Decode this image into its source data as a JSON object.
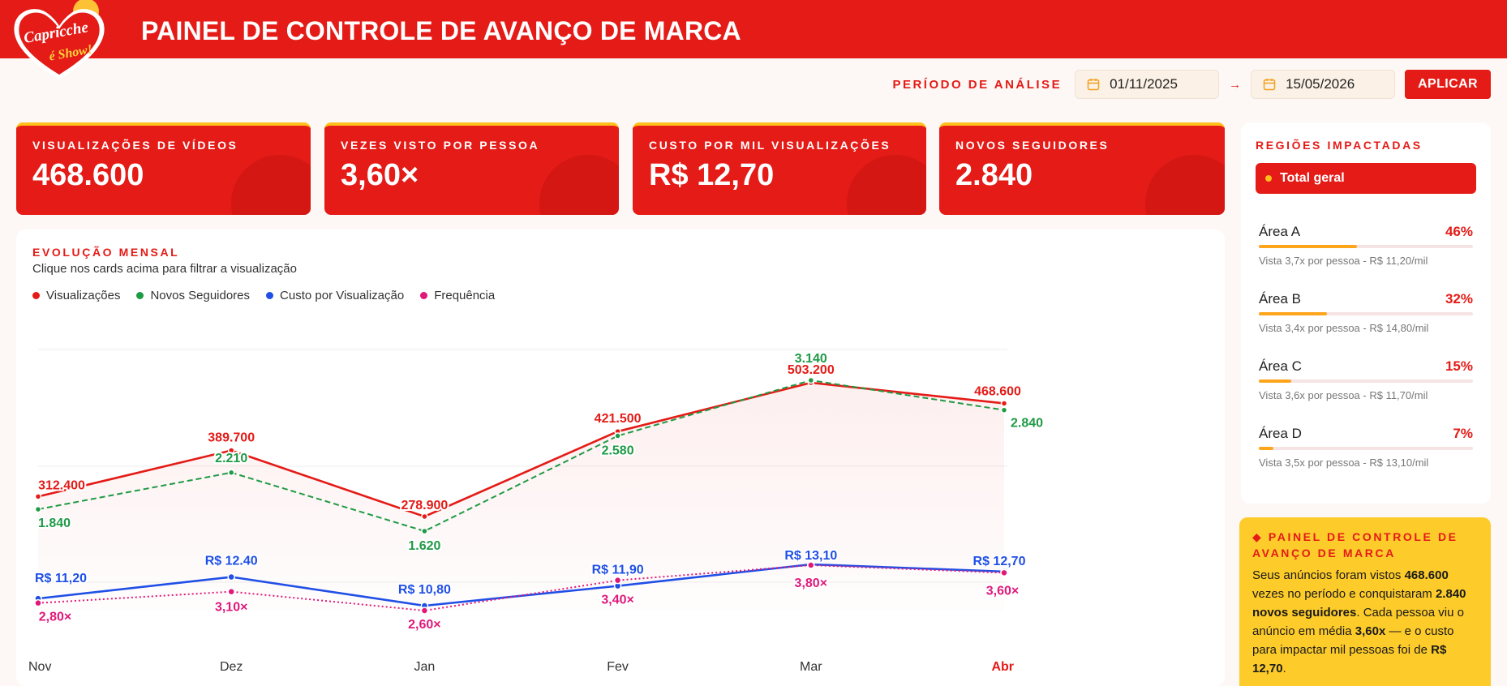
{
  "header": {
    "title": "PAINEL DE CONTROLE DE AVANÇO DE MARCA",
    "logo_line1": "Capricche",
    "logo_line2": "é Show!"
  },
  "filter": {
    "label": "PERÍODO DE ANÁLISE",
    "start_date": "01/11/2025",
    "end_date": "15/05/2026",
    "arrow": "→",
    "apply_label": "APLICAR"
  },
  "kpis": [
    {
      "label": "VISUALIZAÇÕES DE VÍDEOS",
      "value": "468.600"
    },
    {
      "label": "VEZES VISTO POR PESSOA",
      "value": "3,60×"
    },
    {
      "label": "CUSTO POR MIL VISUALIZAÇÕES",
      "value": "R$ 12,70"
    },
    {
      "label": "NOVOS SEGUIDORES",
      "value": "2.840"
    }
  ],
  "colors": {
    "brand_red": "#e41b17",
    "accent_yellow": "#ffc01c",
    "green": "#1f9a45",
    "blue": "#1f4fe6",
    "pink": "#e0187a",
    "bar_orange": "#ffa51c"
  },
  "chart": {
    "title": "EVOLUÇÃO MENSAL",
    "subtitle": "Clique nos cards acima para filtrar a visualização"
  },
  "chart_data": {
    "type": "line",
    "categories": [
      "Nov",
      "Dez",
      "Jan",
      "Fev",
      "Mar",
      "Abr"
    ],
    "highlight_category": "Abr",
    "legend_position": "top-left",
    "grid": true,
    "series": [
      {
        "name": "Visualizações",
        "color": "#e41b17",
        "style": "solid",
        "values": [
          312400,
          389700,
          278900,
          421500,
          503200,
          468600
        ],
        "labels": [
          "312.400",
          "389.700",
          "278.900",
          "421.500",
          "503.200",
          "468.600"
        ]
      },
      {
        "name": "Novos Seguidores",
        "color": "#1f9a45",
        "style": "dashed",
        "values": [
          1840,
          2210,
          1620,
          2580,
          3140,
          2840
        ],
        "labels": [
          "1.840",
          "2.210",
          "1.620",
          "2.580",
          "3.140",
          "2.840"
        ]
      },
      {
        "name": "Custo por Visualização",
        "color": "#1f4fe6",
        "style": "solid",
        "values": [
          11.2,
          12.4,
          10.8,
          11.9,
          13.1,
          12.7
        ],
        "labels": [
          "R$ 11,20",
          "R$ 12.40",
          "R$ 10,80",
          "R$ 11,90",
          "R$ 13,10",
          "R$ 12,70"
        ]
      },
      {
        "name": "Frequência",
        "color": "#e0187a",
        "style": "dotted",
        "values": [
          2.8,
          3.1,
          2.6,
          3.4,
          3.8,
          3.6
        ],
        "labels": [
          "2,80×",
          "3,10×",
          "2,60×",
          "3,40×",
          "3,80×",
          "3,60×"
        ]
      }
    ]
  },
  "regions": {
    "title": "REGIÕES IMPACTADAS",
    "total_label": "Total geral",
    "items": [
      {
        "name": "Área A",
        "pct_label": "46%",
        "pct": 0.46,
        "note": "Vista 3,7x por pessoa - R$ 11,20/mil"
      },
      {
        "name": "Área B",
        "pct_label": "32%",
        "pct": 0.32,
        "note": "Vista 3,4x por pessoa - R$ 14,80/mil"
      },
      {
        "name": "Área C",
        "pct_label": "15%",
        "pct": 0.15,
        "note": "Vista 3,6x por pessoa - R$ 11,70/mil"
      },
      {
        "name": "Área D",
        "pct_label": "7%",
        "pct": 0.07,
        "note": "Vista 3,5x por pessoa - R$ 13,10/mil"
      }
    ]
  },
  "summary": {
    "title": "◆ PAINEL DE CONTROLE DE AVANÇO DE MARCA",
    "t1": "Seus anúncios foram vistos ",
    "b1": "468.600",
    "t2": " vezes no período e conquistaram ",
    "b2": "2.840 novos seguidores",
    "t3": ". Cada pessoa viu o anúncio em média ",
    "b3": "3,60x",
    "t4": " — e o custo para impactar mil pessoas foi de ",
    "b4": "R$ 12,70",
    "t5": "."
  }
}
